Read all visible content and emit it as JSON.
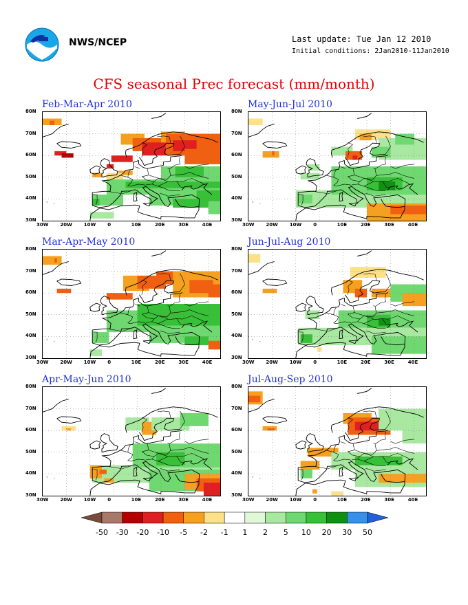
{
  "header": {
    "org": "NWS/NCEP",
    "last_update": "Last update: Tue Jan 12 2010",
    "initial_conditions": "Initial conditions: 2Jan2010-11Jan2010"
  },
  "title": "CFS seasonal Prec forecast (mm/month)",
  "lat_labels": [
    "80N",
    "70N",
    "60N",
    "50N",
    "40N",
    "30N"
  ],
  "lon_labels": [
    "30W",
    "20W",
    "10W",
    "0",
    "10E",
    "20E",
    "30E",
    "40E"
  ],
  "panels": [
    {
      "title": "Feb-Mar-Apr 2010"
    },
    {
      "title": "May-Jun-Jul 2010"
    },
    {
      "title": "Mar-Apr-May 2010"
    },
    {
      "title": "Jun-Jul-Aug 2010"
    },
    {
      "title": "Apr-May-Jun 2010"
    },
    {
      "title": "Jul-Aug-Sep 2010"
    }
  ],
  "colorbar": {
    "labels": [
      "-50",
      "-30",
      "-20",
      "-10",
      "-5",
      "-2",
      "-1",
      "1",
      "2",
      "5",
      "10",
      "20",
      "30",
      "50"
    ],
    "colors": [
      "#7a4a3a",
      "#a87868",
      "#b40000",
      "#e02020",
      "#f06010",
      "#f6a020",
      "#fce08a",
      "#ffffff",
      "#e0f8d8",
      "#a8e8a0",
      "#70d870",
      "#38c038",
      "#109010",
      "#3890e8",
      "#2060d8"
    ]
  }
}
